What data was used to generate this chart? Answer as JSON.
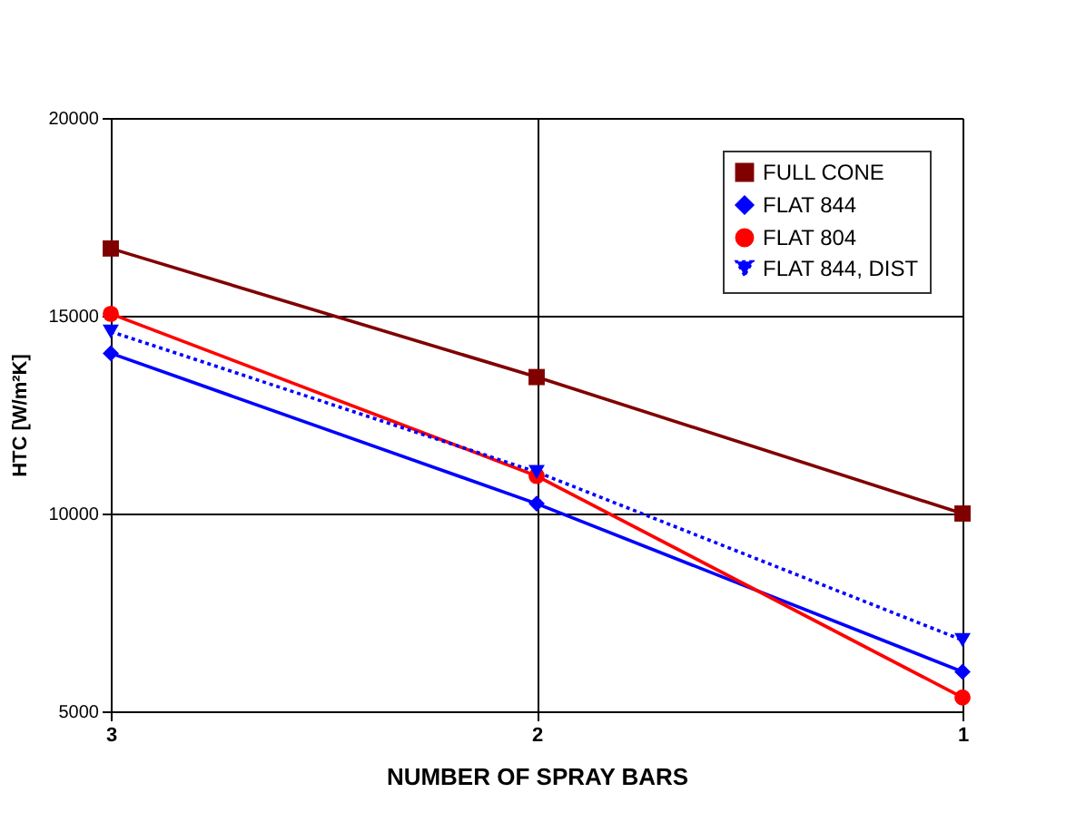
{
  "chart_data": {
    "type": "line",
    "xlabel": "NUMBER OF SPRAY BARS",
    "ylabel": "HTC [W/m²K]",
    "x": [
      3,
      2,
      1
    ],
    "xlim": [
      3,
      1
    ],
    "xticks": [
      3,
      2,
      1
    ],
    "ylim": [
      5000,
      20000
    ],
    "yticks": [
      5000,
      10000,
      15000,
      20000
    ],
    "grid": true,
    "legend": "top right",
    "series": [
      {
        "name": "FULL CONE",
        "color": "#800000",
        "marker": "square",
        "line_style": "solid",
        "values": [
          16700,
          13450,
          10000
        ]
      },
      {
        "name": "FLAT 844",
        "color": "#0000ff",
        "marker": "diamond",
        "line_style": "solid",
        "values": [
          14050,
          10250,
          6000
        ]
      },
      {
        "name": "FLAT 804",
        "color": "#ff0000",
        "marker": "circle",
        "line_style": "solid",
        "values": [
          15050,
          10950,
          5350
        ]
      },
      {
        "name": "FLAT 844, DIST",
        "color": "#0000ff",
        "marker": "triangle",
        "line_style": "dotted",
        "values": [
          14600,
          11050,
          6800
        ]
      }
    ]
  }
}
